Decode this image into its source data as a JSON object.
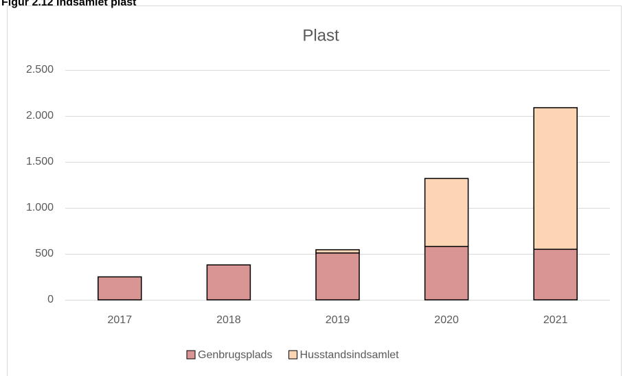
{
  "figure_label": "Figur 2.12 Indsamlet plast",
  "chart_data": {
    "type": "stacked_bar",
    "title": "Plast",
    "categories": [
      "2017",
      "2018",
      "2019",
      "2020",
      "2021"
    ],
    "series": [
      {
        "name": "Genbrugsplads",
        "color": "#d99594",
        "values": [
          250,
          380,
          510,
          580,
          550
        ]
      },
      {
        "name": "Husstandsindsamlet",
        "color": "#fcd5b4",
        "values": [
          0,
          0,
          35,
          740,
          1540
        ]
      }
    ],
    "ylim": [
      0,
      2500
    ],
    "yticks": [
      0,
      500,
      {
        "value": 1000,
        "label": "1.000"
      },
      {
        "value": 1500,
        "label": "1.500"
      },
      {
        "value": 2000,
        "label": "2.000"
      },
      {
        "value": 2500,
        "label": "2.500"
      }
    ],
    "grid": true,
    "legend": "bottom"
  }
}
